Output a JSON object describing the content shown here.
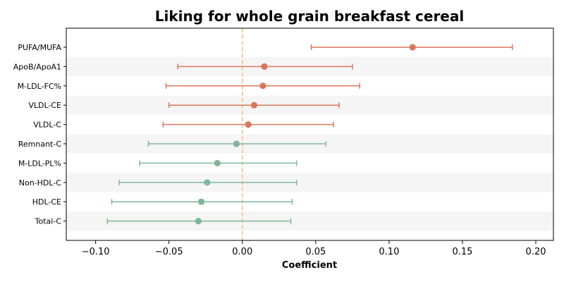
{
  "chart_data": {
    "type": "forest",
    "title": "Liking for whole grain breakfast cereal",
    "xlabel": "Coefficient",
    "ylabel": "",
    "xlim": [
      -0.12,
      0.212
    ],
    "x_ticks": [
      -0.1,
      -0.05,
      0.0,
      0.05,
      0.1,
      0.15,
      0.2
    ],
    "x_tick_labels": [
      "−0.10",
      "−0.05",
      "0.00",
      "0.05",
      "0.10",
      "0.15",
      "0.20"
    ],
    "reference_line": {
      "x": 0,
      "color": "#f0c67a",
      "style": "dashed"
    },
    "alternating_row_shading": true,
    "grid": false,
    "colors": {
      "positive": "#d9775a",
      "negative": "#80b69b",
      "row_shade": "#f5f5f5"
    },
    "rows": [
      {
        "label": "PUFA/MUFA",
        "estimate": 0.116,
        "lower": 0.047,
        "upper": 0.184,
        "group": "positive"
      },
      {
        "label": "ApoB/ApoA1",
        "estimate": 0.015,
        "lower": -0.044,
        "upper": 0.075,
        "group": "positive"
      },
      {
        "label": "M-LDL-FC%",
        "estimate": 0.014,
        "lower": -0.052,
        "upper": 0.08,
        "group": "positive"
      },
      {
        "label": "VLDL-CE",
        "estimate": 0.008,
        "lower": -0.05,
        "upper": 0.066,
        "group": "positive"
      },
      {
        "label": "VLDL-C",
        "estimate": 0.004,
        "lower": -0.054,
        "upper": 0.062,
        "group": "positive"
      },
      {
        "label": "Remnant-C",
        "estimate": -0.004,
        "lower": -0.064,
        "upper": 0.057,
        "group": "negative"
      },
      {
        "label": "M-LDL-PL%",
        "estimate": -0.017,
        "lower": -0.07,
        "upper": 0.037,
        "group": "negative"
      },
      {
        "label": "Non-HDL-C",
        "estimate": -0.024,
        "lower": -0.084,
        "upper": 0.037,
        "group": "negative"
      },
      {
        "label": "HDL-CE",
        "estimate": -0.028,
        "lower": -0.089,
        "upper": 0.034,
        "group": "negative"
      },
      {
        "label": "Total-C",
        "estimate": -0.03,
        "lower": -0.092,
        "upper": 0.033,
        "group": "negative"
      }
    ]
  }
}
